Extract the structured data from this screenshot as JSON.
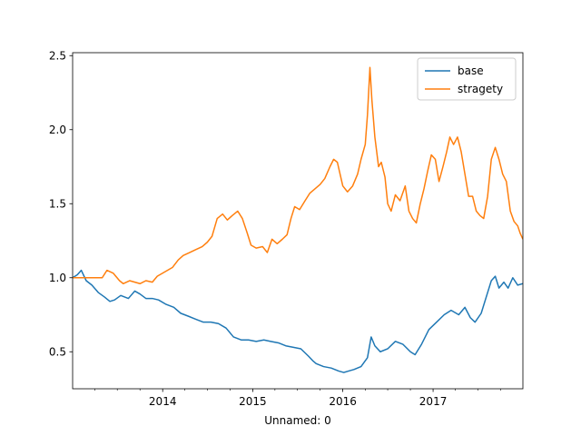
{
  "chart_data": {
    "type": "line",
    "title": "",
    "xlabel": "Unnamed: 0",
    "ylabel": "",
    "xlim": [
      "2013-01-01",
      "2017-12-31"
    ],
    "ylim": [
      0.25,
      2.52
    ],
    "grid": false,
    "legend": "top-right",
    "xticks": [
      {
        "date": "2014-01-01",
        "label": "2014"
      },
      {
        "date": "2015-01-01",
        "label": "2015"
      },
      {
        "date": "2016-01-01",
        "label": "2016"
      },
      {
        "date": "2017-01-01",
        "label": "2017"
      }
    ],
    "yticks": [
      {
        "value": 0.5,
        "label": "0.5"
      },
      {
        "value": 1.0,
        "label": "1.0"
      },
      {
        "value": 1.5,
        "label": "1.5"
      },
      {
        "value": 2.0,
        "label": "2.0"
      },
      {
        "value": 2.5,
        "label": "2.5"
      }
    ],
    "series": [
      {
        "name": "base",
        "color": "#1f77b4",
        "points": [
          [
            "2013-01-01",
            1.0
          ],
          [
            "2013-01-20",
            1.02
          ],
          [
            "2013-02-05",
            1.05
          ],
          [
            "2013-02-25",
            0.98
          ],
          [
            "2013-03-20",
            0.95
          ],
          [
            "2013-04-15",
            0.9
          ],
          [
            "2013-05-10",
            0.87
          ],
          [
            "2013-06-01",
            0.84
          ],
          [
            "2013-06-20",
            0.85
          ],
          [
            "2013-07-15",
            0.88
          ],
          [
            "2013-08-15",
            0.86
          ],
          [
            "2013-09-10",
            0.91
          ],
          [
            "2013-10-01",
            0.89
          ],
          [
            "2013-10-25",
            0.86
          ],
          [
            "2013-11-20",
            0.86
          ],
          [
            "2013-12-15",
            0.85
          ],
          [
            "2014-01-15",
            0.82
          ],
          [
            "2014-02-15",
            0.8
          ],
          [
            "2014-03-15",
            0.76
          ],
          [
            "2014-04-15",
            0.74
          ],
          [
            "2014-05-15",
            0.72
          ],
          [
            "2014-06-15",
            0.7
          ],
          [
            "2014-07-15",
            0.7
          ],
          [
            "2014-08-15",
            0.69
          ],
          [
            "2014-09-15",
            0.66
          ],
          [
            "2014-10-15",
            0.6
          ],
          [
            "2014-11-15",
            0.58
          ],
          [
            "2014-12-15",
            0.58
          ],
          [
            "2015-01-15",
            0.57
          ],
          [
            "2015-02-15",
            0.58
          ],
          [
            "2015-03-15",
            0.57
          ],
          [
            "2015-04-15",
            0.56
          ],
          [
            "2015-05-15",
            0.54
          ],
          [
            "2015-06-15",
            0.53
          ],
          [
            "2015-07-15",
            0.52
          ],
          [
            "2015-08-15",
            0.47
          ],
          [
            "2015-09-01",
            0.44
          ],
          [
            "2015-09-15",
            0.42
          ],
          [
            "2015-10-15",
            0.4
          ],
          [
            "2015-11-15",
            0.39
          ],
          [
            "2015-12-15",
            0.37
          ],
          [
            "2016-01-05",
            0.36
          ],
          [
            "2016-01-25",
            0.37
          ],
          [
            "2016-02-15",
            0.38
          ],
          [
            "2016-03-15",
            0.4
          ],
          [
            "2016-04-10",
            0.46
          ],
          [
            "2016-04-25",
            0.6
          ],
          [
            "2016-05-10",
            0.54
          ],
          [
            "2016-06-01",
            0.5
          ],
          [
            "2016-07-01",
            0.52
          ],
          [
            "2016-08-01",
            0.57
          ],
          [
            "2016-09-01",
            0.55
          ],
          [
            "2016-10-01",
            0.5
          ],
          [
            "2016-10-20",
            0.48
          ],
          [
            "2016-11-15",
            0.55
          ],
          [
            "2016-12-15",
            0.65
          ],
          [
            "2017-01-15",
            0.7
          ],
          [
            "2017-02-15",
            0.75
          ],
          [
            "2017-03-15",
            0.78
          ],
          [
            "2017-04-15",
            0.75
          ],
          [
            "2017-05-10",
            0.8
          ],
          [
            "2017-06-01",
            0.73
          ],
          [
            "2017-06-20",
            0.7
          ],
          [
            "2017-07-15",
            0.76
          ],
          [
            "2017-08-10",
            0.9
          ],
          [
            "2017-08-25",
            0.98
          ],
          [
            "2017-09-10",
            1.01
          ],
          [
            "2017-09-25",
            0.93
          ],
          [
            "2017-10-15",
            0.97
          ],
          [
            "2017-11-01",
            0.93
          ],
          [
            "2017-11-20",
            1.0
          ],
          [
            "2017-12-10",
            0.95
          ],
          [
            "2017-12-31",
            0.96
          ]
        ]
      },
      {
        "name": "stragety",
        "color": "#ff7f0e",
        "points": [
          [
            "2013-01-01",
            1.0
          ],
          [
            "2013-05-01",
            1.0
          ],
          [
            "2013-05-20",
            1.05
          ],
          [
            "2013-06-15",
            1.03
          ],
          [
            "2013-07-10",
            0.98
          ],
          [
            "2013-07-25",
            0.96
          ],
          [
            "2013-08-20",
            0.98
          ],
          [
            "2013-09-10",
            0.97
          ],
          [
            "2013-10-01",
            0.96
          ],
          [
            "2013-10-25",
            0.98
          ],
          [
            "2013-11-20",
            0.97
          ],
          [
            "2013-12-10",
            1.01
          ],
          [
            "2014-01-10",
            1.04
          ],
          [
            "2014-02-10",
            1.07
          ],
          [
            "2014-03-05",
            1.12
          ],
          [
            "2014-03-25",
            1.15
          ],
          [
            "2014-04-20",
            1.17
          ],
          [
            "2014-05-15",
            1.19
          ],
          [
            "2014-06-10",
            1.21
          ],
          [
            "2014-07-01",
            1.24
          ],
          [
            "2014-07-20",
            1.28
          ],
          [
            "2014-08-10",
            1.4
          ],
          [
            "2014-09-01",
            1.43
          ],
          [
            "2014-09-20",
            1.39
          ],
          [
            "2014-10-10",
            1.42
          ],
          [
            "2014-11-01",
            1.45
          ],
          [
            "2014-11-20",
            1.4
          ],
          [
            "2014-12-10",
            1.3
          ],
          [
            "2014-12-25",
            1.22
          ],
          [
            "2015-01-15",
            1.2
          ],
          [
            "2015-02-10",
            1.21
          ],
          [
            "2015-03-01",
            1.17
          ],
          [
            "2015-03-20",
            1.26
          ],
          [
            "2015-04-10",
            1.23
          ],
          [
            "2015-05-01",
            1.26
          ],
          [
            "2015-05-20",
            1.29
          ],
          [
            "2015-06-05",
            1.4
          ],
          [
            "2015-06-20",
            1.48
          ],
          [
            "2015-07-10",
            1.46
          ],
          [
            "2015-08-01",
            1.52
          ],
          [
            "2015-08-20",
            1.57
          ],
          [
            "2015-09-10",
            1.6
          ],
          [
            "2015-10-01",
            1.63
          ],
          [
            "2015-10-20",
            1.67
          ],
          [
            "2015-11-10",
            1.75
          ],
          [
            "2015-11-25",
            1.8
          ],
          [
            "2015-12-10",
            1.78
          ],
          [
            "2016-01-01",
            1.62
          ],
          [
            "2016-01-20",
            1.58
          ],
          [
            "2016-02-10",
            1.62
          ],
          [
            "2016-03-01",
            1.7
          ],
          [
            "2016-03-15",
            1.8
          ],
          [
            "2016-04-01",
            1.9
          ],
          [
            "2016-04-10",
            2.1
          ],
          [
            "2016-04-20",
            2.42
          ],
          [
            "2016-04-28",
            2.2
          ],
          [
            "2016-05-10",
            1.95
          ],
          [
            "2016-05-25",
            1.75
          ],
          [
            "2016-06-05",
            1.78
          ],
          [
            "2016-06-20",
            1.68
          ],
          [
            "2016-07-01",
            1.5
          ],
          [
            "2016-07-15",
            1.45
          ],
          [
            "2016-08-01",
            1.56
          ],
          [
            "2016-08-20",
            1.52
          ],
          [
            "2016-09-10",
            1.62
          ],
          [
            "2016-09-25",
            1.45
          ],
          [
            "2016-10-10",
            1.4
          ],
          [
            "2016-10-25",
            1.37
          ],
          [
            "2016-11-10",
            1.5
          ],
          [
            "2016-11-25",
            1.6
          ],
          [
            "2016-12-10",
            1.72
          ],
          [
            "2016-12-25",
            1.83
          ],
          [
            "2017-01-10",
            1.8
          ],
          [
            "2017-01-25",
            1.65
          ],
          [
            "2017-02-10",
            1.75
          ],
          [
            "2017-02-25",
            1.85
          ],
          [
            "2017-03-10",
            1.95
          ],
          [
            "2017-03-25",
            1.9
          ],
          [
            "2017-04-10",
            1.95
          ],
          [
            "2017-04-25",
            1.85
          ],
          [
            "2017-05-10",
            1.7
          ],
          [
            "2017-05-25",
            1.55
          ],
          [
            "2017-06-10",
            1.55
          ],
          [
            "2017-06-25",
            1.45
          ],
          [
            "2017-07-10",
            1.42
          ],
          [
            "2017-07-25",
            1.4
          ],
          [
            "2017-08-10",
            1.55
          ],
          [
            "2017-08-25",
            1.8
          ],
          [
            "2017-09-10",
            1.88
          ],
          [
            "2017-09-25",
            1.8
          ],
          [
            "2017-10-10",
            1.7
          ],
          [
            "2017-10-25",
            1.65
          ],
          [
            "2017-11-10",
            1.45
          ],
          [
            "2017-11-25",
            1.38
          ],
          [
            "2017-12-10",
            1.35
          ],
          [
            "2017-12-20",
            1.3
          ],
          [
            "2017-12-31",
            1.26
          ]
        ]
      }
    ]
  }
}
